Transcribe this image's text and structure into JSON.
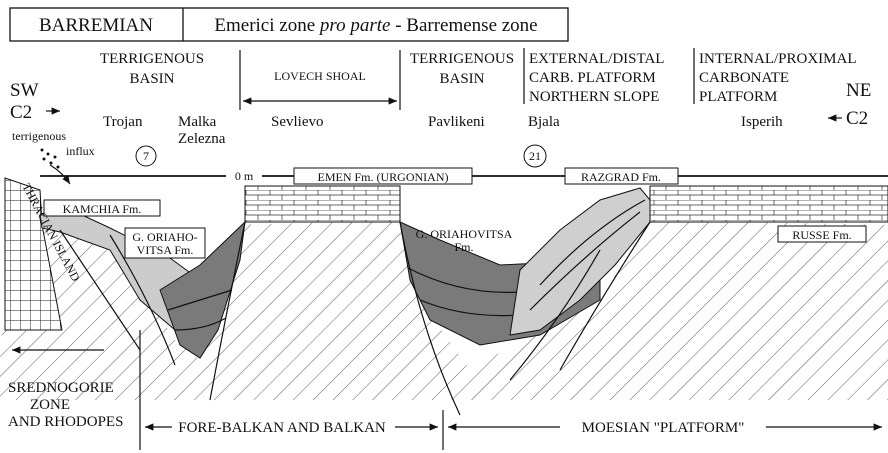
{
  "header": {
    "stage": "BARREMIAN",
    "zone": [
      "Emerici zone ",
      "pro parte",
      " - Barremense zone"
    ]
  },
  "domains": [
    [
      "TERRIGENOUS",
      "BASIN"
    ],
    [
      "LOVECH SHOAL"
    ],
    [
      "TERRIGENOUS",
      "BASIN"
    ],
    [
      "EXTERNAL/DISTAL",
      "CARB. PLATFORM",
      "NORTHERN SLOPE"
    ],
    [
      "INTERNAL/PROXIMAL",
      "CARBONATE",
      "PLATFORM"
    ]
  ],
  "ends": {
    "sw": [
      "SW",
      "C2"
    ],
    "ne": [
      "NE",
      "C2"
    ]
  },
  "localities": [
    "Trojan",
    [
      "Malka",
      "Zelezna"
    ],
    "Sevlievo",
    "Pavlikeni",
    "Bjala",
    "Isperih"
  ],
  "influx": [
    "terrigenous",
    "influx"
  ],
  "sites": [
    "7",
    "21"
  ],
  "sea_level": "0 m",
  "formations": {
    "emen": "EMEN Fm. (URGONIAN)",
    "razgrad": "RAZGRAD Fm.",
    "kamchia": "KAMCHIA Fm.",
    "oriahovitsa_west": [
      "G. ORIAHO-",
      "VITSA Fm."
    ],
    "oriahovitsa_east": [
      "G. ORIAHOVITSA",
      "Fm."
    ],
    "russe": "RUSSE Fm.",
    "thracian": "THRACIAN ISLAND"
  },
  "zones": [
    [
      "SREDNOGORIE",
      "ZONE",
      "AND RHODOPES"
    ],
    "FORE-BALKAN AND BALKAN",
    "MOESIAN \"PLATFORM\""
  ]
}
